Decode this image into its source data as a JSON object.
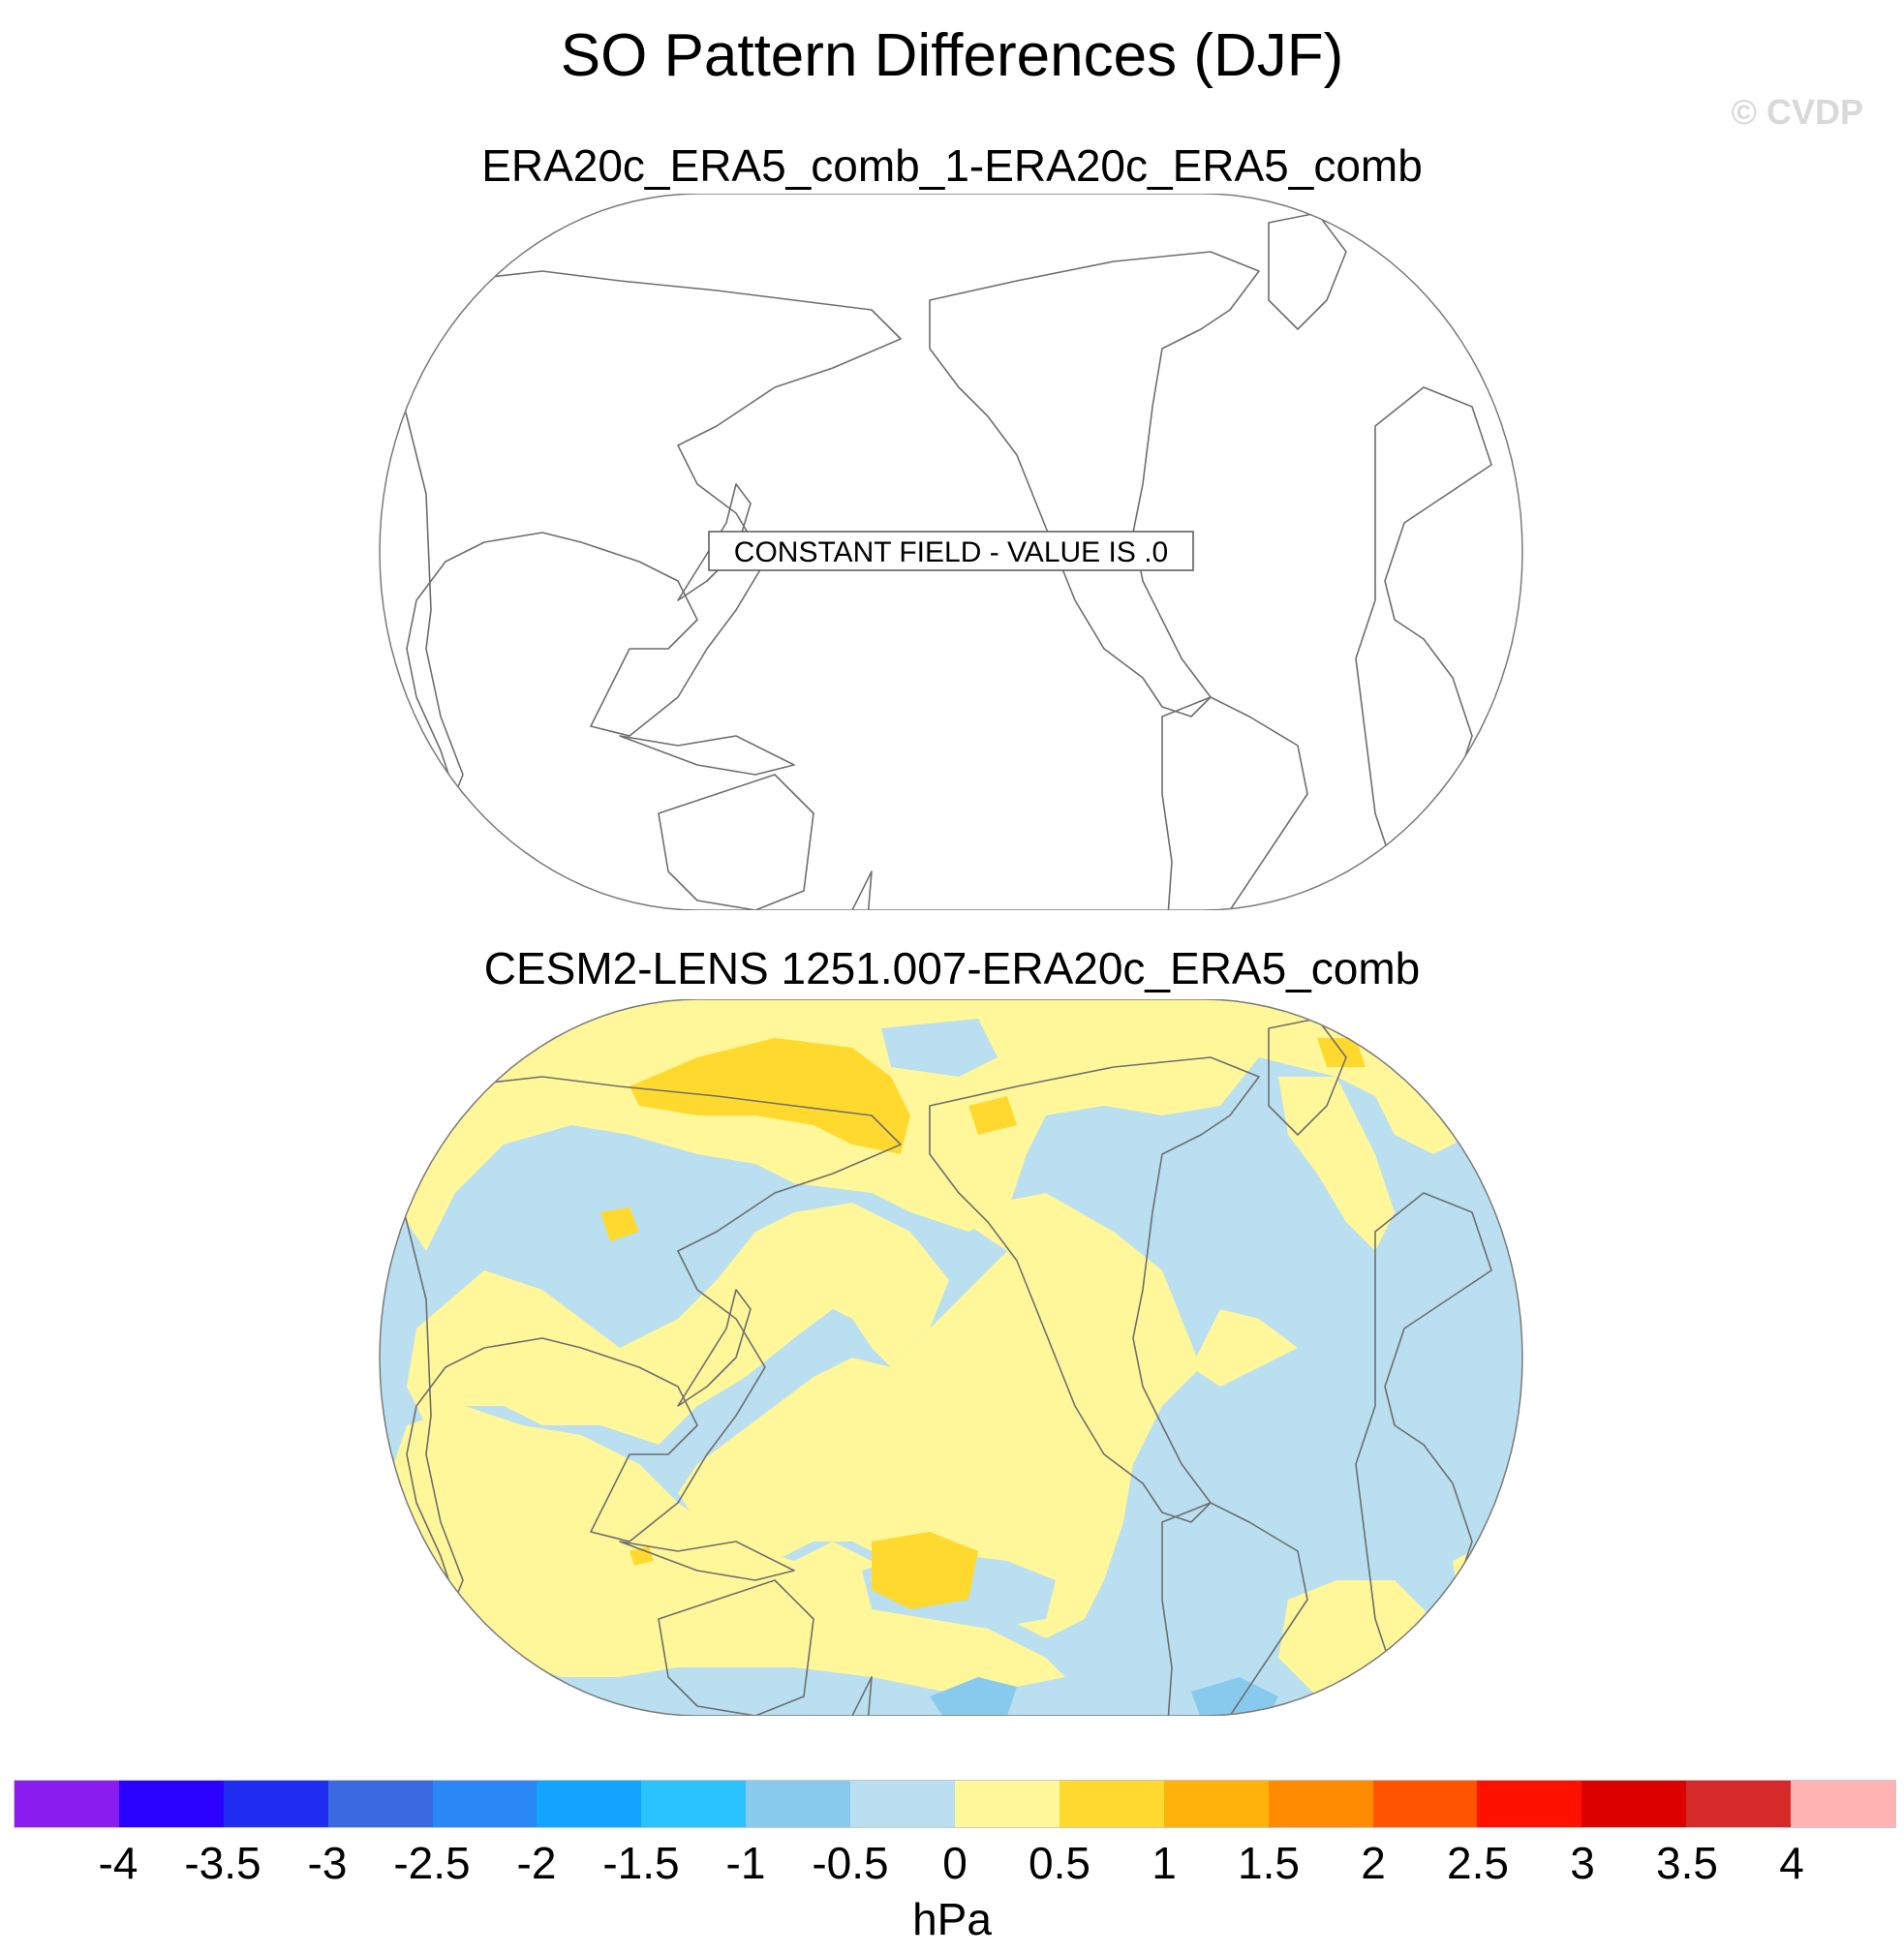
{
  "title": "SO Pattern Differences (DJF)",
  "watermark": "© CVDP",
  "panels": [
    {
      "title": "ERA20c_ERA5_comb_1-ERA20c_ERA5_comb",
      "annotation": "CONSTANT FIELD - VALUE IS .0"
    },
    {
      "title": "CESM2-LENS 1251.007-ERA20c_ERA5_comb"
    }
  ],
  "colorbar": {
    "units": "hPa",
    "labels": [
      "-4",
      "-3.5",
      "-3",
      "-2.5",
      "-2",
      "-1.5",
      "-1",
      "-0.5",
      "0",
      "0.5",
      "1",
      "1.5",
      "2",
      "2.5",
      "3",
      "3.5",
      "4"
    ],
    "colors": [
      "#8a1cf0",
      "#2a00ff",
      "#1f2ef0",
      "#3b6ae0",
      "#2a88f5",
      "#12a4ff",
      "#2ac3ff",
      "#88caee",
      "#b9dff1",
      "#fff799",
      "#ffd92e",
      "#ffb20c",
      "#ff8c00",
      "#ff5500",
      "#ff1100",
      "#dd0000",
      "#d42a2a",
      "#ffb3b3"
    ]
  },
  "map_colors": {
    "neg_light": "#b9dff1",
    "neg_mid": "#88caee",
    "pos_light": "#fff799",
    "pos_mid": "#ffd92e",
    "coast": "#6e6e6e"
  }
}
